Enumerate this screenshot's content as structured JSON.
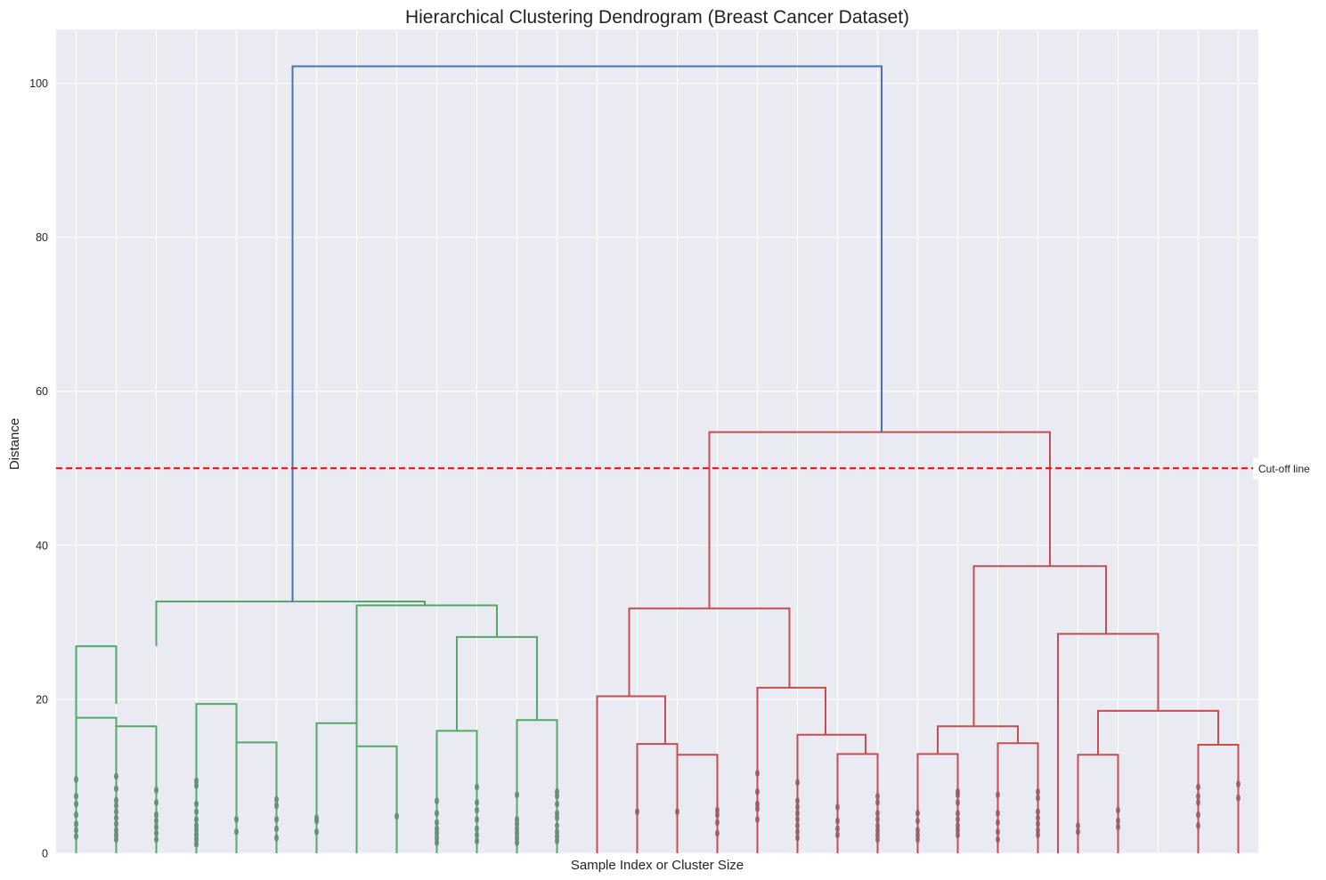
{
  "chart_data": {
    "type": "dendrogram",
    "title": "Hierarchical Clustering Dendrogram (Breast Cancer Dataset)",
    "xlabel": "Sample Index or Cluster Size",
    "ylabel": "Distance",
    "ylim": [
      0,
      107
    ],
    "xlim": [
      0,
      300
    ],
    "y_ticks": [
      0,
      20,
      40,
      60,
      80,
      100
    ],
    "grid": true,
    "leaves": [
      5,
      15,
      25,
      35,
      45,
      55,
      65,
      75,
      85,
      95,
      105,
      115,
      125,
      135,
      145,
      155,
      165,
      175,
      185,
      195,
      205,
      215,
      225,
      235,
      245,
      255,
      265,
      275,
      285,
      295
    ],
    "links": [
      {
        "x": [
          5,
          5,
          15,
          15
        ],
        "y": [
          0,
          17.6,
          17.6,
          0
        ],
        "color": "#55a868"
      },
      {
        "x": [
          15,
          15,
          25,
          25
        ],
        "y": [
          0,
          16.5,
          16.5,
          0
        ],
        "color": "#55a868"
      },
      {
        "x": [
          5,
          5,
          15,
          15
        ],
        "y": [
          17.6,
          26.9,
          26.9,
          19.4
        ],
        "color": "#55a868"
      },
      {
        "x": [
          35,
          35,
          45,
          45
        ],
        "y": [
          0,
          19.4,
          19.4,
          14.4
        ],
        "color": "#55a868"
      },
      {
        "x": [
          45,
          45,
          55,
          55
        ],
        "y": [
          0,
          14.4,
          14.4,
          0
        ],
        "color": "#55a868"
      },
      {
        "x": [
          65,
          65,
          75,
          75
        ],
        "y": [
          0,
          16.9,
          16.9,
          13.9
        ],
        "color": "#55a868"
      },
      {
        "x": [
          75,
          75,
          85,
          85
        ],
        "y": [
          0,
          13.9,
          13.9,
          0
        ],
        "color": "#55a868"
      },
      {
        "x": [
          95,
          95,
          105,
          105
        ],
        "y": [
          0,
          15.9,
          15.9,
          0
        ],
        "color": "#55a868"
      },
      {
        "x": [
          115,
          115,
          125,
          125
        ],
        "y": [
          0,
          17.3,
          17.3,
          0
        ],
        "color": "#55a868"
      },
      {
        "x": [
          100,
          100,
          120,
          120
        ],
        "y": [
          15.9,
          28.1,
          28.1,
          17.3
        ],
        "color": "#55a868"
      },
      {
        "x": [
          75,
          75,
          110,
          110
        ],
        "y": [
          16.9,
          32.2,
          32.2,
          28.1
        ],
        "color": "#55a868"
      },
      {
        "x": [
          25,
          25,
          92,
          92
        ],
        "y": [
          26.9,
          32.7,
          32.7,
          32.2
        ],
        "color": "#55a868"
      },
      {
        "x": [
          135,
          135,
          152,
          152
        ],
        "y": [
          0,
          20.4,
          20.4,
          14.2
        ],
        "color": "#c44e52"
      },
      {
        "x": [
          145,
          145,
          155,
          155
        ],
        "y": [
          0,
          14.2,
          14.2,
          12.8
        ],
        "color": "#c44e52"
      },
      {
        "x": [
          155,
          155,
          165,
          165
        ],
        "y": [
          0,
          12.8,
          12.8,
          0
        ],
        "color": "#c44e52"
      },
      {
        "x": [
          175,
          175,
          192,
          192
        ],
        "y": [
          0,
          21.5,
          21.5,
          15.4
        ],
        "color": "#c44e52"
      },
      {
        "x": [
          185,
          185,
          202,
          202
        ],
        "y": [
          0,
          15.4,
          15.4,
          12.9
        ],
        "color": "#c44e52"
      },
      {
        "x": [
          195,
          195,
          205,
          205
        ],
        "y": [
          0,
          12.9,
          12.9,
          0
        ],
        "color": "#c44e52"
      },
      {
        "x": [
          143,
          143,
          183,
          183
        ],
        "y": [
          20.4,
          31.8,
          31.8,
          21.5
        ],
        "color": "#c44e52"
      },
      {
        "x": [
          215,
          215,
          225,
          225
        ],
        "y": [
          0,
          12.9,
          12.9,
          0
        ],
        "color": "#c44e52"
      },
      {
        "x": [
          220,
          220,
          240,
          240
        ],
        "y": [
          12.9,
          16.5,
          16.5,
          14.3
        ],
        "color": "#c44e52"
      },
      {
        "x": [
          235,
          235,
          245,
          245
        ],
        "y": [
          0,
          14.3,
          14.3,
          0
        ],
        "color": "#c44e52"
      },
      {
        "x": [
          255,
          255,
          265,
          265
        ],
        "y": [
          0,
          12.8,
          12.8,
          0
        ],
        "color": "#c44e52"
      },
      {
        "x": [
          285,
          285,
          295,
          295
        ],
        "y": [
          0,
          14.1,
          14.1,
          0
        ],
        "color": "#c44e52"
      },
      {
        "x": [
          260,
          260,
          290,
          290
        ],
        "y": [
          12.8,
          18.5,
          18.5,
          14.1
        ],
        "color": "#c44e52"
      },
      {
        "x": [
          250,
          250,
          275,
          275
        ],
        "y": [
          0,
          28.5,
          28.5,
          18.5
        ],
        "color": "#c44e52"
      },
      {
        "x": [
          229,
          229,
          262,
          262
        ],
        "y": [
          16.5,
          37.3,
          37.3,
          28.5
        ],
        "color": "#c44e52"
      },
      {
        "x": [
          163,
          163,
          248,
          248
        ],
        "y": [
          31.8,
          54.7,
          54.7,
          37.3
        ],
        "color": "#c44e52"
      },
      {
        "x": [
          59,
          59,
          206,
          206
        ],
        "y": [
          32.7,
          102.2,
          102.2,
          54.7
        ],
        "color": "#4c72b0"
      }
    ],
    "cutoff": {
      "y": 50,
      "label": "Cut-off line",
      "color": "#ff0000"
    },
    "leaf_points": [
      {
        "x": 5,
        "y": [
          2.2,
          3.0,
          3.8,
          5.0,
          6.4,
          7.4,
          9.6
        ]
      },
      {
        "x": 15,
        "y": [
          1.8,
          2.4,
          3.0,
          3.8,
          4.6,
          5.4,
          6.2,
          6.9,
          8.4,
          10.0
        ]
      },
      {
        "x": 25,
        "y": [
          1.8,
          2.6,
          3.4,
          4.2,
          5.0,
          6.6,
          8.2
        ]
      },
      {
        "x": 35,
        "y": [
          1.2,
          1.8,
          2.4,
          3.0,
          3.6,
          4.4,
          5.4,
          6.4,
          8.8,
          9.4
        ]
      },
      {
        "x": 45,
        "y": [
          2.8,
          4.4
        ]
      },
      {
        "x": 55,
        "y": [
          2.0,
          3.2,
          4.4,
          6.2,
          7.0
        ]
      },
      {
        "x": 65,
        "y": [
          2.8,
          4.2,
          4.6
        ]
      },
      {
        "x": 85,
        "y": [
          4.8
        ]
      },
      {
        "x": 95,
        "y": [
          1.4,
          2.0,
          2.6,
          3.2,
          4.0,
          5.2,
          6.8
        ]
      },
      {
        "x": 105,
        "y": [
          1.6,
          2.4,
          3.2,
          4.4,
          5.6,
          6.6,
          8.6
        ]
      },
      {
        "x": 115,
        "y": [
          1.4,
          2.0,
          2.6,
          3.2,
          3.8,
          4.4,
          7.6
        ]
      },
      {
        "x": 125,
        "y": [
          1.6,
          2.2,
          2.8,
          3.6,
          4.6,
          5.2,
          6.4,
          7.4,
          8.0
        ]
      },
      {
        "x": 145,
        "y": [
          5.4
        ]
      },
      {
        "x": 155,
        "y": [
          5.4
        ]
      },
      {
        "x": 165,
        "y": [
          2.6,
          4.0,
          5.0,
          5.6
        ]
      },
      {
        "x": 175,
        "y": [
          4.4,
          5.8,
          6.4,
          8.0,
          10.4
        ]
      },
      {
        "x": 185,
        "y": [
          2.0,
          2.8,
          3.6,
          4.4,
          5.2,
          6.0,
          6.8,
          9.2
        ]
      },
      {
        "x": 195,
        "y": [
          2.4,
          3.2,
          4.2,
          6.0
        ]
      },
      {
        "x": 205,
        "y": [
          1.8,
          2.4,
          3.0,
          3.6,
          4.4,
          5.2,
          6.6,
          7.4
        ]
      },
      {
        "x": 215,
        "y": [
          1.8,
          2.4,
          3.0,
          4.2,
          5.2
        ]
      },
      {
        "x": 225,
        "y": [
          2.4,
          3.0,
          3.6,
          4.4,
          5.2,
          6.6,
          7.6,
          8.0
        ]
      },
      {
        "x": 235,
        "y": [
          1.8,
          2.8,
          4.0,
          5.2,
          7.6
        ]
      },
      {
        "x": 245,
        "y": [
          2.4,
          3.0,
          3.8,
          4.6,
          5.4,
          7.2,
          8.0
        ]
      },
      {
        "x": 255,
        "y": [
          2.8,
          3.6
        ]
      },
      {
        "x": 265,
        "y": [
          3.4,
          4.2,
          5.6
        ]
      },
      {
        "x": 285,
        "y": [
          3.6,
          5.0,
          6.6,
          7.4,
          8.6
        ]
      },
      {
        "x": 295,
        "y": [
          7.2,
          9.0
        ]
      }
    ]
  },
  "colors": {
    "background": "#eaeaf2",
    "grid": "#ffffff",
    "cluster_a": "#55a868",
    "cluster_b": "#c44e52",
    "root": "#4c72b0",
    "leaf_point": "#5a5a66"
  }
}
